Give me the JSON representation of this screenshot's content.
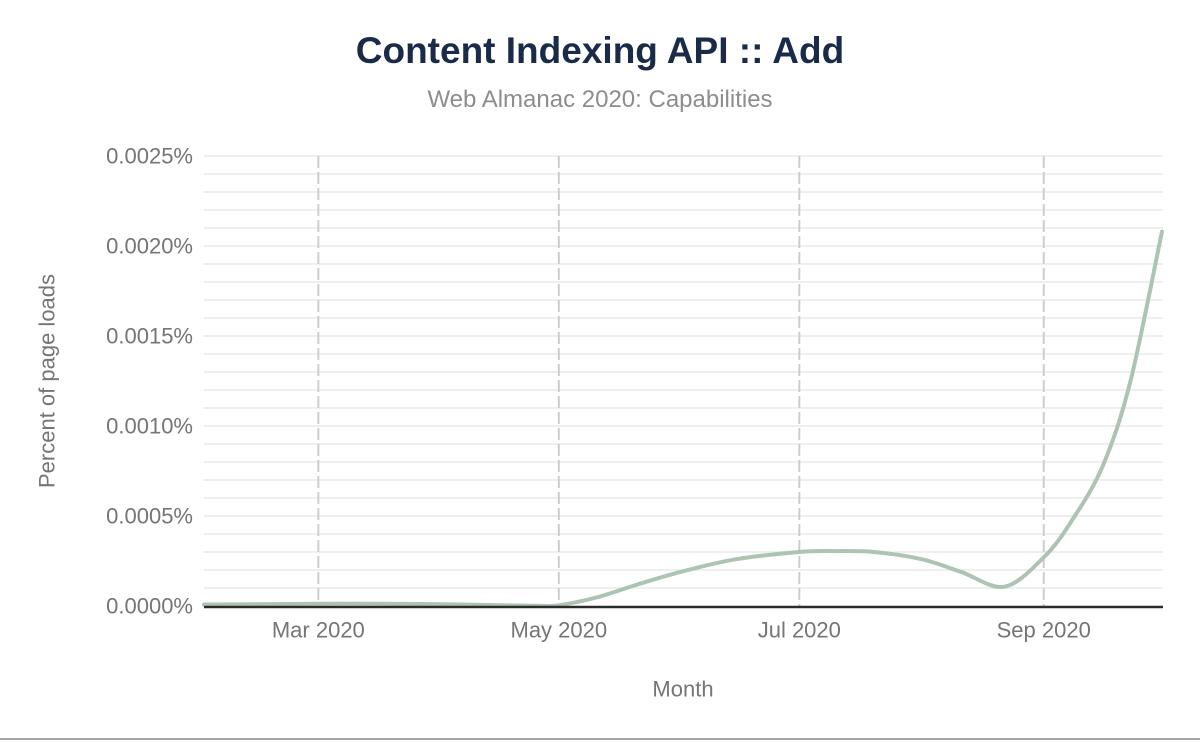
{
  "page": {
    "title": "Content Indexing API :: Add",
    "subtitle": "Web Almanac 2020: Capabilities"
  },
  "chart_data": {
    "type": "line",
    "title": "Content Indexing API :: Add",
    "subtitle": "Web Almanac 2020: Capabilities",
    "xlabel": "Month",
    "ylabel": "Percent of page loads",
    "x_domain": [
      "2020-02-01",
      "2020-10-01"
    ],
    "x_domain_days": 243,
    "ylim": [
      0,
      0.0025
    ],
    "y_unit": "percent of page loads",
    "legend": "none",
    "grid": {
      "horizontal_minor_step": 0.0001,
      "horizontal_style": "solid",
      "vertical_at_month_ticks": true,
      "vertical_style": "dashed"
    },
    "y_ticks": [
      {
        "value": 0.0,
        "label": "0.0000%"
      },
      {
        "value": 0.0005,
        "label": "0.0005%"
      },
      {
        "value": 0.001,
        "label": "0.0010%"
      },
      {
        "value": 0.0015,
        "label": "0.0015%"
      },
      {
        "value": 0.002,
        "label": "0.0020%"
      },
      {
        "value": 0.0025,
        "label": "0.0025%"
      }
    ],
    "x_ticks": [
      {
        "day": 29,
        "label": "Mar 2020"
      },
      {
        "day": 90,
        "label": "May 2020"
      },
      {
        "day": 151,
        "label": "Jul 2020"
      },
      {
        "day": 213,
        "label": "Sep 2020"
      }
    ],
    "series": [
      {
        "points": [
          {
            "day": 0,
            "value": 8e-06
          },
          {
            "day": 14,
            "value": 1e-05
          },
          {
            "day": 29,
            "value": 1.3e-05
          },
          {
            "day": 45,
            "value": 1.3e-05
          },
          {
            "day": 60,
            "value": 1e-05
          },
          {
            "day": 75,
            "value": 4e-06
          },
          {
            "day": 85,
            "value": 1e-06
          },
          {
            "day": 90,
            "value": 4e-06
          },
          {
            "day": 100,
            "value": 5e-05
          },
          {
            "day": 110,
            "value": 0.00012
          },
          {
            "day": 121,
            "value": 0.00019
          },
          {
            "day": 135,
            "value": 0.00026
          },
          {
            "day": 151,
            "value": 0.0003
          },
          {
            "day": 160,
            "value": 0.000305
          },
          {
            "day": 170,
            "value": 0.0003
          },
          {
            "day": 182,
            "value": 0.00026
          },
          {
            "day": 192,
            "value": 0.00019
          },
          {
            "day": 203,
            "value": 0.000107
          },
          {
            "day": 213,
            "value": 0.00027
          },
          {
            "day": 220,
            "value": 0.00047
          },
          {
            "day": 228,
            "value": 0.00078
          },
          {
            "day": 235,
            "value": 0.00125
          },
          {
            "day": 243,
            "value": 0.00208
          }
        ]
      }
    ]
  },
  "colors": {
    "title": "#1a2b49",
    "subtitle": "#8d8d8d",
    "axis_text": "#757575",
    "series_line": "#abc4b4",
    "grid_minor": "#efefef",
    "grid_vertical_dashed": "#cdcdcd",
    "axis_line": "#2b2b2b",
    "bottom_rule": "#a5a5a5"
  }
}
